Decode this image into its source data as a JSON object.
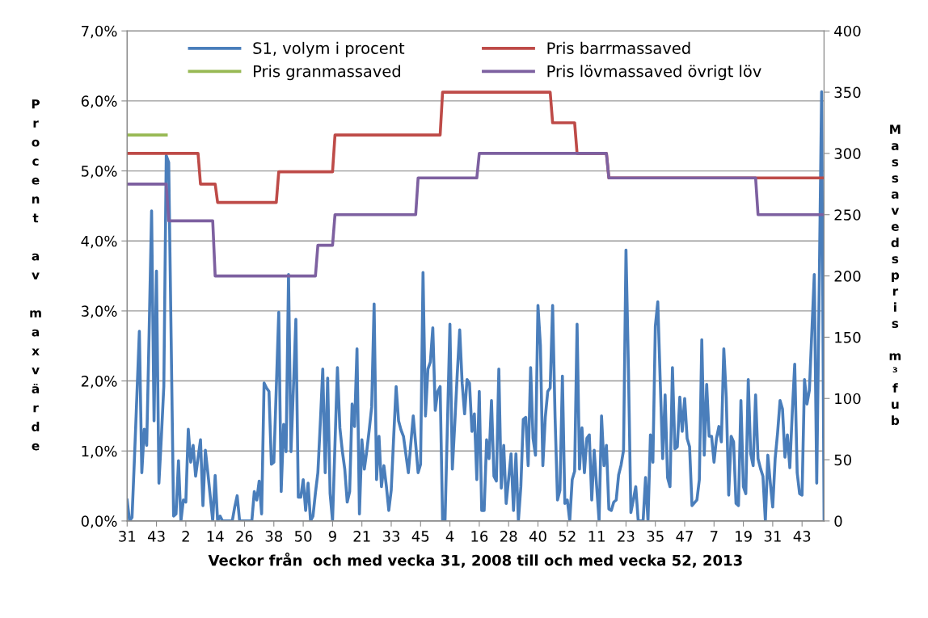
{
  "chart_data": {
    "type": "line",
    "xlabel": "Veckor från  och med vecka 31, 2008 till och med vecka 52, 2013",
    "ylabel": "Procent av maxvärde",
    "y2label": "Massavedspris m³fub",
    "categories": [
      "31",
      null,
      null,
      null,
      null,
      null,
      null,
      null,
      null,
      null,
      null,
      null,
      "43",
      null,
      null,
      null,
      null,
      null,
      null,
      null,
      null,
      null,
      null,
      null,
      "2",
      null,
      null,
      null,
      null,
      null,
      null,
      null,
      null,
      null,
      null,
      null,
      "14",
      null,
      null,
      null,
      null,
      null,
      null,
      null,
      null,
      null,
      null,
      null,
      "26",
      null,
      null,
      null,
      null,
      null,
      null,
      null,
      null,
      null,
      null,
      null,
      "38",
      null,
      null,
      null,
      null,
      null,
      null,
      null,
      null,
      null,
      null,
      null,
      "50",
      null,
      null,
      null,
      null,
      null,
      null,
      null,
      null,
      null,
      null,
      null,
      "9",
      null,
      null,
      null,
      null,
      null,
      null,
      null,
      null,
      null,
      null,
      null,
      "21",
      null,
      null,
      null,
      null,
      null,
      null,
      null,
      null,
      null,
      null,
      null,
      "33",
      null,
      null,
      null,
      null,
      null,
      null,
      null,
      null,
      null,
      null,
      null,
      "45",
      null,
      null,
      null,
      null,
      null,
      null,
      null,
      null,
      null,
      null,
      null,
      "4",
      null,
      null,
      null,
      null,
      null,
      null,
      null,
      null,
      null,
      null,
      null,
      "16",
      null,
      null,
      null,
      null,
      null,
      null,
      null,
      null,
      null,
      null,
      null,
      "28",
      null,
      null,
      null,
      null,
      null,
      null,
      null,
      null,
      null,
      null,
      null,
      "40",
      null,
      null,
      null,
      null,
      null,
      null,
      null,
      null,
      null,
      null,
      null,
      "52",
      null,
      null,
      null,
      null,
      null,
      null,
      null,
      null,
      null,
      null,
      null,
      "11",
      null,
      null,
      null,
      null,
      null,
      null,
      null,
      null,
      null,
      null,
      null,
      "23",
      null,
      null,
      null,
      null,
      null,
      null,
      null,
      null,
      null,
      null,
      null,
      "35",
      null,
      null,
      null,
      null,
      null,
      null,
      null,
      null,
      null,
      null,
      null,
      "47",
      null,
      null,
      null,
      null,
      null,
      null,
      null,
      null,
      null,
      null,
      null,
      "7",
      null,
      null,
      null,
      null,
      null,
      null,
      null,
      null,
      null,
      null,
      null,
      "19",
      null,
      null,
      null,
      null,
      null,
      null,
      null,
      null,
      null,
      null,
      null,
      "31",
      null,
      null,
      null,
      null,
      null,
      null,
      null,
      null,
      null,
      null,
      null,
      "43",
      null,
      null,
      null,
      null,
      null,
      null,
      null,
      null,
      null
    ],
    "ylim": [
      0,
      7
    ],
    "yticks": [
      {
        "value": 0,
        "label": "0,0%"
      },
      {
        "value": 1,
        "label": "1,0%"
      },
      {
        "value": 2,
        "label": "2,0%"
      },
      {
        "value": 3,
        "label": "3,0%"
      },
      {
        "value": 4,
        "label": "4,0%"
      },
      {
        "value": 5,
        "label": "5,0%"
      },
      {
        "value": 6,
        "label": "6,0%"
      },
      {
        "value": 7,
        "label": "7,0%"
      }
    ],
    "y2lim": [
      0,
      400
    ],
    "y2ticks": [
      0,
      50,
      100,
      150,
      200,
      250,
      300,
      350,
      400
    ],
    "grid": "y",
    "legend": "top",
    "series": [
      {
        "name": "S1, volym i procent",
        "color": "#4a7ebb",
        "values": [
          0.3,
          0,
          0.05,
          0.9,
          1.8,
          2.71,
          0.69,
          1.31,
          1.08,
          2.7,
          4.43,
          1.43,
          3.57,
          0.54,
          1.2,
          1.92,
          5.22,
          5.12,
          2.6,
          0.07,
          0.1,
          0.86,
          0,
          0.3,
          0.27,
          1.31,
          0.84,
          1.08,
          0.64,
          0.9,
          1.16,
          0.22,
          1.01,
          0.69,
          0.35,
          0,
          0.65,
          0,
          0.07,
          0,
          0,
          0,
          0,
          0,
          0.2,
          0.36,
          0,
          0,
          0,
          0,
          0,
          0,
          0.42,
          0.3,
          0.57,
          0.1,
          1.97,
          1.9,
          1.85,
          0.81,
          0.84,
          1.9,
          2.98,
          0.42,
          1.38,
          0.99,
          3.52,
          0.99,
          1.9,
          2.88,
          0.34,
          0.34,
          0.59,
          0.15,
          0.54,
          0,
          0.07,
          0.4,
          0.69,
          1.4,
          2.17,
          0.69,
          2.04,
          0.39,
          0,
          1.1,
          2.19,
          1.33,
          1.0,
          0.74,
          0.27,
          0.42,
          1.67,
          1.35,
          2.46,
          0.1,
          1.16,
          0.74,
          1.0,
          1.3,
          1.63,
          3.1,
          0.59,
          1.21,
          0.49,
          0.79,
          0.5,
          0.15,
          0.44,
          1.2,
          1.92,
          1.43,
          1.3,
          1.21,
          0.95,
          0.69,
          1.1,
          1.5,
          1.1,
          0.69,
          0.81,
          3.55,
          1.5,
          2.17,
          2.27,
          2.76,
          1.58,
          1.85,
          1.92,
          0,
          0,
          1.4,
          2.81,
          0.74,
          1.4,
          2.1,
          2.73,
          1.97,
          1.53,
          2.02,
          1.97,
          1.28,
          1.53,
          0.59,
          1.85,
          0.15,
          0.15,
          1.16,
          0.89,
          1.72,
          0.64,
          0.57,
          2.17,
          0.47,
          1.08,
          0.25,
          0.6,
          0.96,
          0.15,
          0.96,
          0,
          0.49,
          1.45,
          1.48,
          0.79,
          2.19,
          1.18,
          0.94,
          3.08,
          2.51,
          0.79,
          1.48,
          1.85,
          1.9,
          3.08,
          1.48,
          0.3,
          0.44,
          2.07,
          0.25,
          0.3,
          0,
          0.59,
          0.71,
          2.81,
          0.74,
          1.33,
          0.69,
          1.18,
          1.23,
          0.3,
          1.01,
          0.5,
          0,
          1.5,
          0.79,
          1.08,
          0.17,
          0.15,
          0.27,
          0.3,
          0.66,
          0.8,
          1.01,
          3.87,
          2.17,
          0.12,
          0.3,
          0.49,
          0,
          0,
          0,
          0.62,
          0,
          1.23,
          0.84,
          2.78,
          3.13,
          2.0,
          0.89,
          1.8,
          0.62,
          0.49,
          2.19,
          1.03,
          1.06,
          1.77,
          1.28,
          1.75,
          1.18,
          1.06,
          0.22,
          0.26,
          0.3,
          0.59,
          2.59,
          0.94,
          1.95,
          1.21,
          1.21,
          0.84,
          1.18,
          1.35,
          1.13,
          2.46,
          1.77,
          0.37,
          1.21,
          1.13,
          0.25,
          0.22,
          1.72,
          0.49,
          0.39,
          2.02,
          0.96,
          0.79,
          1.8,
          0.89,
          0.75,
          0.64,
          0,
          0.94,
          0.55,
          0.2,
          0.89,
          1.26,
          1.72,
          1.6,
          0.91,
          1.23,
          0.76,
          1.55,
          2.24,
          0.69,
          0.39,
          0.37,
          2.02,
          1.67,
          1.87,
          2.7,
          3.52,
          0.54,
          3.3,
          6.13,
          0
        ]
      },
      {
        "name": "Pris granmassaved",
        "color": "#98b954",
        "axis": "y2",
        "values": [
          315,
          315,
          315,
          315,
          315,
          315,
          315,
          315,
          315,
          315,
          315,
          315,
          315,
          315,
          315,
          315,
          315,
          null,
          null,
          null,
          null,
          null,
          null,
          null,
          null,
          null,
          null,
          null,
          null,
          null,
          null,
          null,
          null,
          null,
          null,
          null,
          null,
          null,
          null,
          null,
          null,
          null,
          null,
          null,
          null,
          null,
          null,
          null,
          null,
          null,
          null,
          null,
          null,
          null,
          null,
          null,
          null,
          null,
          null,
          null,
          null,
          null,
          null,
          null,
          null,
          null,
          null,
          null,
          null,
          null,
          null,
          null,
          null,
          null,
          null,
          null,
          null,
          null,
          null,
          null,
          null,
          null,
          null,
          null,
          null,
          null,
          null,
          null,
          null,
          null,
          null,
          null,
          null,
          null,
          null,
          null,
          null,
          null,
          null,
          null,
          null,
          null,
          null,
          null,
          null,
          null,
          null,
          null,
          null,
          null,
          null,
          null,
          null,
          null,
          null,
          null,
          null,
          null,
          null,
          null,
          null,
          null,
          null,
          null,
          null,
          null,
          null,
          null,
          null,
          null,
          null,
          null,
          null,
          null,
          null,
          null,
          null,
          null,
          null,
          null,
          null,
          null,
          null,
          null,
          null,
          null,
          null,
          null,
          null,
          null,
          null,
          null,
          null,
          null,
          null,
          null,
          null,
          null,
          null,
          null,
          null,
          null,
          null,
          null,
          null,
          null,
          null,
          null,
          null,
          null,
          null,
          null,
          null,
          null,
          null,
          null,
          null,
          null,
          null,
          null,
          null,
          null,
          null,
          null,
          null,
          null,
          null,
          null,
          null,
          null,
          null,
          null,
          null,
          null,
          null,
          null,
          null,
          null,
          null,
          null,
          null,
          null,
          null,
          null,
          null,
          null,
          null,
          null,
          null,
          null,
          null,
          null,
          null,
          null,
          null,
          null,
          null,
          null,
          null,
          null,
          null,
          null,
          null,
          null,
          null,
          null,
          null,
          null,
          null,
          null,
          null,
          null,
          null,
          null,
          null,
          null,
          null,
          null,
          null,
          null,
          null,
          null,
          null,
          null,
          null,
          null,
          null,
          null,
          null,
          null,
          null,
          null,
          null,
          null,
          null,
          null,
          null,
          null,
          null,
          null,
          null,
          null,
          null,
          null,
          null,
          null,
          null,
          null,
          null,
          null,
          null,
          null,
          null,
          null,
          null,
          null,
          null,
          null,
          null,
          null,
          null,
          null,
          null,
          null,
          null,
          null
        ]
      },
      {
        "name": "Pris barrmassaved",
        "color": "#be4b48",
        "axis": "y2",
        "values": [
          300,
          300,
          300,
          300,
          300,
          300,
          300,
          300,
          300,
          300,
          300,
          300,
          300,
          300,
          300,
          300,
          300,
          300,
          300,
          300,
          300,
          300,
          300,
          300,
          300,
          300,
          300,
          300,
          300,
          300,
          275,
          275,
          275,
          275,
          275,
          275,
          275,
          260,
          260,
          260,
          260,
          260,
          260,
          260,
          260,
          260,
          260,
          260,
          260,
          260,
          260,
          260,
          260,
          260,
          260,
          260,
          260,
          260,
          260,
          260,
          260,
          260,
          285,
          285,
          285,
          285,
          285,
          285,
          285,
          285,
          285,
          285,
          285,
          285,
          285,
          285,
          285,
          285,
          285,
          285,
          285,
          285,
          285,
          285,
          285,
          315,
          315,
          315,
          315,
          315,
          315,
          315,
          315,
          315,
          315,
          315,
          315,
          315,
          315,
          315,
          315,
          315,
          315,
          315,
          315,
          315,
          315,
          315,
          315,
          315,
          315,
          315,
          315,
          315,
          315,
          315,
          315,
          315,
          315,
          315,
          315,
          315,
          315,
          315,
          315,
          315,
          315,
          315,
          315,
          350,
          350,
          350,
          350,
          350,
          350,
          350,
          350,
          350,
          350,
          350,
          350,
          350,
          350,
          350,
          350,
          350,
          350,
          350,
          350,
          350,
          350,
          350,
          350,
          350,
          350,
          350,
          350,
          350,
          350,
          350,
          350,
          350,
          350,
          350,
          350,
          350,
          350,
          350,
          350,
          350,
          350,
          350,
          350,
          350,
          325,
          325,
          325,
          325,
          325,
          325,
          325,
          325,
          325,
          325,
          300,
          300,
          300,
          300,
          300,
          300,
          300,
          300,
          300,
          300,
          300,
          300,
          300,
          280,
          280,
          280,
          280,
          280,
          280,
          280,
          280,
          280,
          280,
          280,
          280,
          280,
          280,
          280,
          280,
          280,
          280,
          280,
          280,
          280,
          280,
          280,
          280,
          280,
          280,
          280,
          280,
          280,
          280,
          280,
          280,
          280,
          280,
          280,
          280,
          280,
          280,
          280,
          280,
          280,
          280,
          280,
          280,
          280,
          280,
          280,
          280,
          280,
          280,
          280,
          280,
          280,
          280,
          280,
          280,
          280,
          280,
          280,
          280,
          280,
          280,
          280,
          280,
          280,
          280,
          280,
          280,
          280,
          280,
          280,
          280,
          280,
          280,
          280,
          280,
          280,
          280,
          280,
          280,
          280,
          280,
          280,
          280,
          280,
          280,
          280,
          280,
          280
        ]
      },
      {
        "name": "Pris lövmassaved övrigt löv",
        "color": "#7d60a0",
        "axis": "y2",
        "values": [
          275,
          275,
          275,
          275,
          275,
          275,
          275,
          275,
          275,
          275,
          275,
          275,
          275,
          275,
          275,
          275,
          275,
          245,
          245,
          245,
          245,
          245,
          245,
          245,
          245,
          245,
          245,
          245,
          245,
          245,
          245,
          245,
          245,
          245,
          245,
          245,
          200,
          200,
          200,
          200,
          200,
          200,
          200,
          200,
          200,
          200,
          200,
          200,
          200,
          200,
          200,
          200,
          200,
          200,
          200,
          200,
          200,
          200,
          200,
          200,
          200,
          200,
          200,
          200,
          200,
          200,
          200,
          200,
          200,
          200,
          200,
          200,
          200,
          200,
          200,
          200,
          200,
          200,
          225,
          225,
          225,
          225,
          225,
          225,
          225,
          250,
          250,
          250,
          250,
          250,
          250,
          250,
          250,
          250,
          250,
          250,
          250,
          250,
          250,
          250,
          250,
          250,
          250,
          250,
          250,
          250,
          250,
          250,
          250,
          250,
          250,
          250,
          250,
          250,
          250,
          250,
          250,
          250,
          250,
          280,
          280,
          280,
          280,
          280,
          280,
          280,
          280,
          280,
          280,
          280,
          280,
          280,
          280,
          280,
          280,
          280,
          280,
          280,
          280,
          280,
          280,
          280,
          280,
          280,
          300,
          300,
          300,
          300,
          300,
          300,
          300,
          300,
          300,
          300,
          300,
          300,
          300,
          300,
          300,
          300,
          300,
          300,
          300,
          300,
          300,
          300,
          300,
          300,
          300,
          300,
          300,
          300,
          300,
          300,
          300,
          300,
          300,
          300,
          300,
          300,
          300,
          300,
          300,
          300,
          300,
          300,
          300,
          300,
          300,
          300,
          300,
          300,
          300,
          300,
          300,
          300,
          300,
          280,
          280,
          280,
          280,
          280,
          280,
          280,
          280,
          280,
          280,
          280,
          280,
          280,
          280,
          280,
          280,
          280,
          280,
          280,
          280,
          280,
          280,
          280,
          280,
          280,
          280,
          280,
          280,
          280,
          280,
          280,
          280,
          280,
          280,
          280,
          280,
          280,
          280,
          280,
          280,
          280,
          280,
          280,
          280,
          280,
          280,
          280,
          280,
          280,
          280,
          280,
          280,
          280,
          280,
          280,
          280,
          280,
          280,
          280,
          280,
          280,
          250,
          250,
          250,
          250,
          250,
          250,
          250,
          250,
          250,
          250,
          250,
          250,
          250,
          250,
          250,
          250,
          250,
          250,
          250,
          250,
          250,
          250,
          250,
          250,
          250,
          250,
          250,
          250
        ]
      }
    ]
  }
}
